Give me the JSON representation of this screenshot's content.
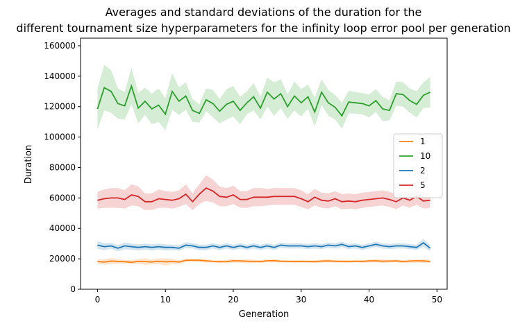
{
  "chart_data": {
    "type": "line",
    "title_lines": [
      "Averages and standard deviations of the duration for the",
      "different tournament size hyperparameters for the infinity loop error pool per generation"
    ],
    "xlabel": "Generation",
    "ylabel": "Duration",
    "xlim": [
      -2.5,
      51.5
    ],
    "ylim": [
      0,
      165000
    ],
    "xticks": [
      0,
      10,
      20,
      30,
      40,
      50
    ],
    "yticks": [
      0,
      20000,
      40000,
      60000,
      80000,
      100000,
      120000,
      140000,
      160000
    ],
    "grid": false,
    "legend_position": "right",
    "x": [
      0,
      1,
      2,
      3,
      4,
      5,
      6,
      7,
      8,
      9,
      10,
      11,
      12,
      13,
      14,
      15,
      16,
      17,
      18,
      19,
      20,
      21,
      22,
      23,
      24,
      25,
      26,
      27,
      28,
      29,
      30,
      31,
      32,
      33,
      34,
      35,
      36,
      37,
      38,
      39,
      40,
      41,
      42,
      43,
      44,
      45,
      46,
      47,
      48,
      49
    ],
    "series": [
      {
        "name": "1",
        "color": "#ff7f0e",
        "mean": [
          18200,
          17800,
          18500,
          18300,
          18100,
          17700,
          18300,
          18200,
          17900,
          18400,
          18000,
          18300,
          17800,
          19000,
          19100,
          19000,
          18700,
          18300,
          18100,
          18200,
          18700,
          18600,
          18400,
          18300,
          18200,
          18700,
          18800,
          18400,
          18300,
          18200,
          18300,
          18200,
          18100,
          18500,
          18600,
          18400,
          18300,
          18200,
          18400,
          18300,
          18600,
          18700,
          18400,
          18500,
          18600,
          18200,
          18500,
          18700,
          18600,
          18300
        ],
        "std": [
          1300,
          1800,
          2000,
          1500,
          1200,
          1300,
          1500,
          2200,
          1500,
          1800,
          2400,
          1700,
          1200,
          1000,
          900,
          1000,
          1300,
          800,
          900,
          1100,
          1200,
          1000,
          1300,
          1100,
          1000,
          900,
          1100,
          900,
          800,
          900,
          900,
          800,
          900,
          1000,
          1000,
          900,
          900,
          900,
          800,
          1000,
          900,
          1100,
          1200,
          1000,
          900,
          1000,
          1100,
          1100,
          1200,
          1000
        ]
      },
      {
        "name": "10",
        "color": "#2ca02c",
        "mean": [
          118500,
          132500,
          130000,
          122000,
          120500,
          133500,
          119000,
          123500,
          118500,
          121000,
          115000,
          130000,
          123500,
          127000,
          117500,
          115500,
          124500,
          122000,
          117000,
          121500,
          123500,
          117500,
          122500,
          126500,
          119000,
          129500,
          125000,
          128500,
          120000,
          127000,
          122500,
          126500,
          116500,
          129500,
          122500,
          119500,
          114000,
          123000,
          122500,
          122000,
          120500,
          124000,
          118500,
          117500,
          128500,
          128000,
          124000,
          121500,
          127500,
          129500
        ],
        "std": [
          13500,
          15000,
          14000,
          10000,
          9000,
          12000,
          10000,
          9000,
          10000,
          11000,
          10500,
          12000,
          9000,
          9000,
          7500,
          6000,
          7500,
          9000,
          8000,
          10000,
          10000,
          9000,
          7500,
          9000,
          7500,
          9500,
          11000,
          9500,
          8000,
          9500,
          9000,
          8000,
          9500,
          8500,
          8500,
          8000,
          8500,
          7500,
          7000,
          7000,
          7500,
          7500,
          8000,
          6500,
          8000,
          8000,
          8000,
          8500,
          8500,
          10000
        ]
      },
      {
        "name": "2",
        "color": "#1f77b4",
        "mean": [
          29000,
          28000,
          28500,
          27000,
          28500,
          28000,
          27500,
          28000,
          27500,
          28000,
          27500,
          27500,
          27000,
          29000,
          28500,
          27500,
          27500,
          28500,
          27500,
          28500,
          27500,
          28500,
          27500,
          28500,
          27500,
          28500,
          27500,
          29000,
          28500,
          28500,
          28500,
          28000,
          28500,
          28000,
          29000,
          28500,
          29500,
          28000,
          28500,
          27500,
          28500,
          29500,
          28500,
          28000,
          28500,
          28500,
          28000,
          27500,
          30500,
          27000
        ],
        "std": [
          2500,
          2300,
          2000,
          2000,
          2300,
          2000,
          2000,
          2000,
          2000,
          2000,
          2000,
          1800,
          1800,
          1800,
          1800,
          1800,
          1800,
          1800,
          1800,
          1700,
          1700,
          1700,
          1700,
          1700,
          1700,
          1700,
          1700,
          1700,
          1700,
          1700,
          1700,
          1700,
          1700,
          1700,
          1700,
          1700,
          1700,
          1700,
          1700,
          1700,
          1700,
          1700,
          1700,
          1700,
          1700,
          1700,
          1700,
          1700,
          2500,
          2000
        ]
      },
      {
        "name": "5",
        "color": "#d62728",
        "mean": [
          58500,
          59500,
          60000,
          60000,
          59000,
          62000,
          61000,
          57500,
          57500,
          59500,
          59000,
          58500,
          59500,
          62500,
          57500,
          62500,
          66500,
          64500,
          61000,
          60500,
          62000,
          59000,
          59000,
          60500,
          60500,
          60500,
          61000,
          61000,
          61000,
          61000,
          59500,
          57500,
          60500,
          58500,
          58000,
          59500,
          57500,
          58000,
          57500,
          58500,
          59000,
          59500,
          60000,
          59000,
          57500,
          60000,
          58500,
          61000,
          58000,
          58500
        ],
        "std": [
          5500,
          6000,
          6500,
          6500,
          6000,
          7000,
          6500,
          5500,
          5500,
          6000,
          5500,
          5500,
          5500,
          6500,
          5500,
          6500,
          8500,
          7500,
          6500,
          6000,
          6000,
          5500,
          5500,
          6000,
          6000,
          5500,
          5500,
          5500,
          5500,
          5500,
          5500,
          5000,
          5500,
          5000,
          5000,
          5000,
          5000,
          5000,
          5000,
          5000,
          5000,
          5000,
          5000,
          5000,
          5000,
          5000,
          5000,
          5500,
          5000,
          5000
        ]
      }
    ]
  }
}
